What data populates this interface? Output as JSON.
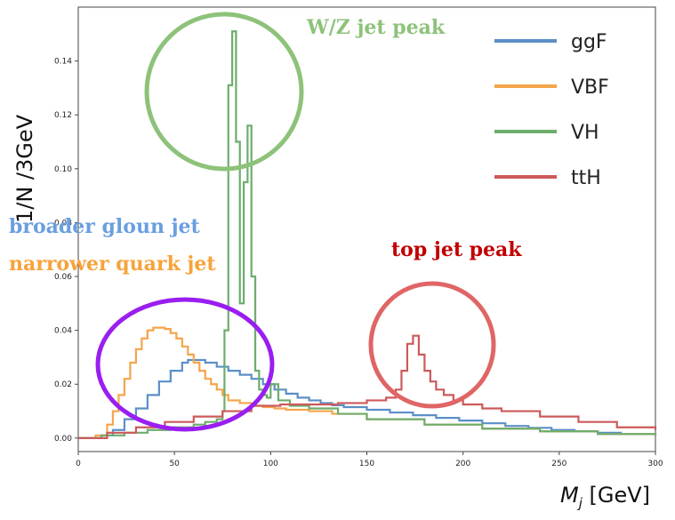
{
  "chart_data": {
    "type": "line",
    "xlabel": "M_j [GeV]",
    "ylabel": "1/N /3GeV",
    "xlim": [
      0,
      300
    ],
    "ylim": [
      -0.005,
      0.16
    ],
    "xticks": [
      "0",
      "50",
      "100",
      "150",
      "200",
      "250",
      "300"
    ],
    "yticks": [
      "0.00",
      "0.02",
      "0.04",
      "0.06",
      "0.08",
      "0.10",
      "0.12",
      "0.14"
    ],
    "legend_position": "top-right",
    "grid": false,
    "series": [
      {
        "name": "ggF",
        "color": "#5b8fc7",
        "x": [
          0,
          12,
          18,
          24,
          30,
          36,
          42,
          48,
          54,
          57,
          60,
          66,
          72,
          78,
          84,
          90,
          96,
          102,
          108,
          114,
          120,
          126,
          132,
          138,
          150,
          162,
          174,
          186,
          198,
          210,
          222,
          234,
          246,
          258,
          270,
          282,
          300
        ],
        "y": [
          0,
          0.001,
          0.003,
          0.007,
          0.011,
          0.016,
          0.021,
          0.025,
          0.028,
          0.029,
          0.029,
          0.028,
          0.0265,
          0.025,
          0.0235,
          0.022,
          0.02,
          0.018,
          0.0165,
          0.015,
          0.014,
          0.013,
          0.0122,
          0.0115,
          0.0105,
          0.0095,
          0.0085,
          0.0075,
          0.0065,
          0.0055,
          0.0045,
          0.0038,
          0.003,
          0.0025,
          0.002,
          0.0015,
          0.0012
        ]
      },
      {
        "name": "VBF",
        "color": "#f5a54b",
        "x": [
          0,
          9,
          15,
          18,
          21,
          24,
          27,
          30,
          33,
          36,
          39,
          42,
          45,
          48,
          51,
          54,
          57,
          60,
          63,
          66,
          69,
          72,
          75,
          78,
          84,
          90,
          96,
          102,
          108,
          120,
          132,
          150,
          180,
          210,
          240,
          270,
          300
        ],
        "y": [
          0,
          0.001,
          0.005,
          0.01,
          0.016,
          0.022,
          0.028,
          0.033,
          0.037,
          0.04,
          0.041,
          0.041,
          0.0405,
          0.039,
          0.037,
          0.034,
          0.031,
          0.028,
          0.025,
          0.022,
          0.02,
          0.018,
          0.016,
          0.014,
          0.013,
          0.012,
          0.0115,
          0.011,
          0.0105,
          0.01,
          0.009,
          0.007,
          0.005,
          0.0035,
          0.0025,
          0.0015,
          0.001
        ]
      },
      {
        "name": "VH",
        "color": "#6dad6d",
        "x": [
          0,
          12,
          24,
          36,
          48,
          60,
          66,
          72,
          75,
          76,
          78,
          80,
          82,
          84,
          86,
          88,
          90,
          92,
          94,
          96,
          98,
          100,
          104,
          110,
          120,
          135,
          150,
          180,
          210,
          240,
          270,
          300
        ],
        "y": [
          0,
          0.001,
          0.002,
          0.003,
          0.004,
          0.005,
          0.006,
          0.007,
          0.01,
          0.04,
          0.131,
          0.151,
          0.11,
          0.05,
          0.095,
          0.116,
          0.06,
          0.025,
          0.018,
          0.016,
          0.015,
          0.02,
          0.014,
          0.012,
          0.011,
          0.009,
          0.007,
          0.005,
          0.0035,
          0.0025,
          0.0015,
          0.001
        ]
      },
      {
        "name": "ttH",
        "color": "#cc5a5a",
        "x": [
          0,
          15,
          30,
          45,
          60,
          75,
          90,
          105,
          120,
          135,
          150,
          160,
          165,
          168,
          171,
          174,
          177,
          180,
          183,
          186,
          190,
          195,
          200,
          210,
          220,
          240,
          260,
          280,
          300
        ],
        "y": [
          0,
          0.002,
          0.004,
          0.006,
          0.008,
          0.01,
          0.012,
          0.0125,
          0.0125,
          0.013,
          0.014,
          0.015,
          0.018,
          0.025,
          0.035,
          0.038,
          0.031,
          0.025,
          0.021,
          0.018,
          0.016,
          0.014,
          0.0125,
          0.011,
          0.01,
          0.008,
          0.006,
          0.004,
          0.003
        ]
      }
    ]
  },
  "annotations": {
    "wz_peak": "W/Z jet peak",
    "gluon": "broader gloun jet",
    "quark": "narrower quark jet",
    "top_peak": "top jet peak"
  },
  "annotation_colors": {
    "wz": "#8dc27a",
    "gluon": "#6a9fe0",
    "quark": "#f7a33a",
    "top": "#c00000",
    "circle_green": "#8dc27a",
    "circle_purple": "#9a1ef0",
    "circle_red": "#e06565"
  }
}
